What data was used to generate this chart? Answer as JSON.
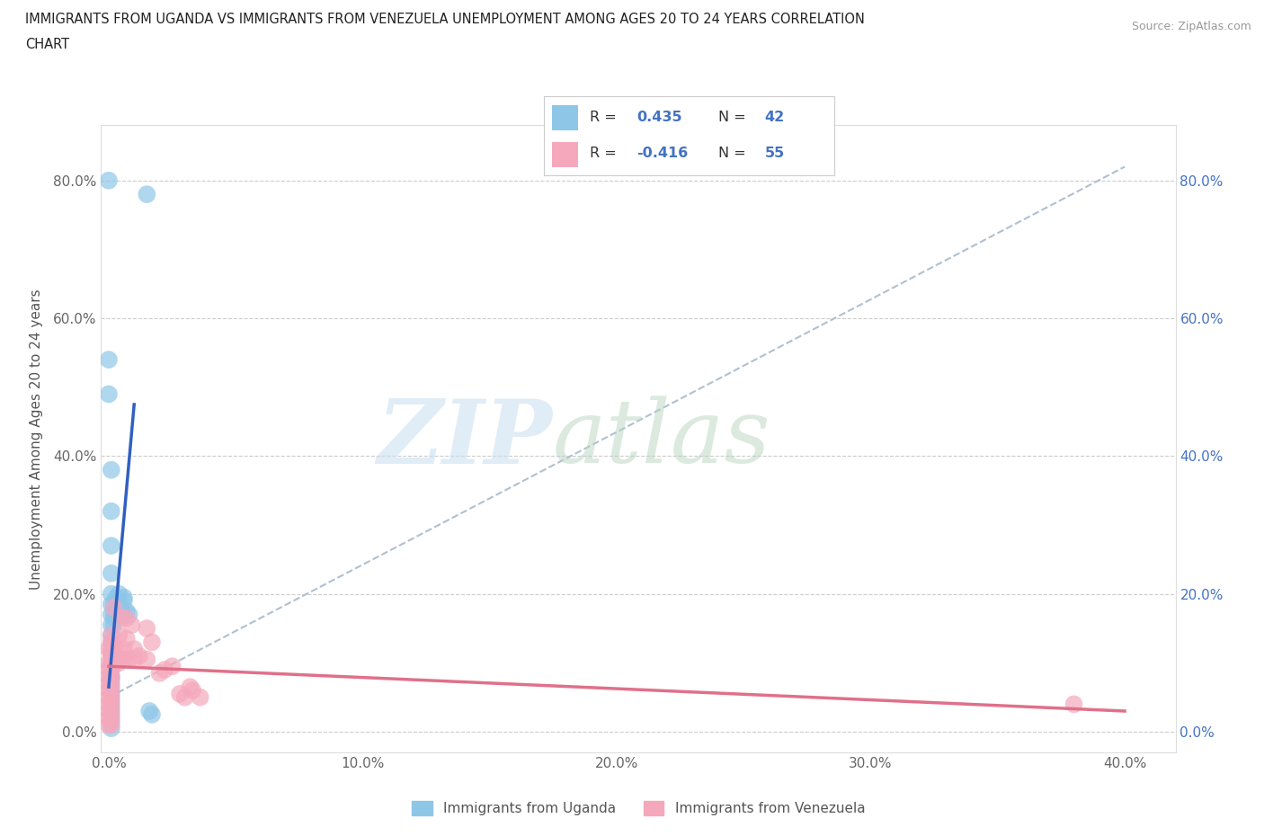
{
  "title_line1": "IMMIGRANTS FROM UGANDA VS IMMIGRANTS FROM VENEZUELA UNEMPLOYMENT AMONG AGES 20 TO 24 YEARS CORRELATION",
  "title_line2": "CHART",
  "source": "Source: ZipAtlas.com",
  "ylabel": "Unemployment Among Ages 20 to 24 years",
  "xlim": [
    -0.003,
    0.42
  ],
  "ylim": [
    -0.03,
    0.88
  ],
  "xticks": [
    0.0,
    0.1,
    0.2,
    0.3,
    0.4
  ],
  "yticks": [
    0.0,
    0.2,
    0.4,
    0.6,
    0.8
  ],
  "xtick_labels": [
    "0.0%",
    "10.0%",
    "20.0%",
    "30.0%",
    "40.0%"
  ],
  "ytick_labels": [
    "0.0%",
    "20.0%",
    "40.0%",
    "60.0%",
    "80.0%"
  ],
  "uganda_color": "#8ec6e8",
  "venezuela_color": "#f5a8bc",
  "uganda_line_color": "#3060c0",
  "venezuela_line_color": "#e0708a",
  "dash_line_color": "#b0c0d0",
  "legend_color": "#4472c4",
  "background_color": "#ffffff",
  "grid_color": "#cccccc",
  "uganda_R": 0.435,
  "uganda_N": 42,
  "venezuela_R": -0.416,
  "venezuela_N": 55,
  "uganda_scatter": [
    [
      0.0,
      0.8
    ],
    [
      0.0,
      0.54
    ],
    [
      0.0,
      0.49
    ],
    [
      0.001,
      0.38
    ],
    [
      0.001,
      0.32
    ],
    [
      0.001,
      0.27
    ],
    [
      0.001,
      0.23
    ],
    [
      0.001,
      0.2
    ],
    [
      0.001,
      0.185
    ],
    [
      0.001,
      0.17
    ],
    [
      0.001,
      0.155
    ],
    [
      0.001,
      0.14
    ],
    [
      0.001,
      0.13
    ],
    [
      0.001,
      0.115
    ],
    [
      0.001,
      0.1
    ],
    [
      0.001,
      0.09
    ],
    [
      0.001,
      0.08
    ],
    [
      0.001,
      0.075
    ],
    [
      0.001,
      0.065
    ],
    [
      0.001,
      0.055
    ],
    [
      0.001,
      0.045
    ],
    [
      0.001,
      0.035
    ],
    [
      0.001,
      0.025
    ],
    [
      0.001,
      0.015
    ],
    [
      0.001,
      0.005
    ],
    [
      0.002,
      0.185
    ],
    [
      0.002,
      0.175
    ],
    [
      0.002,
      0.165
    ],
    [
      0.002,
      0.155
    ],
    [
      0.003,
      0.195
    ],
    [
      0.003,
      0.185
    ],
    [
      0.004,
      0.2
    ],
    [
      0.004,
      0.19
    ],
    [
      0.005,
      0.175
    ],
    [
      0.005,
      0.17
    ],
    [
      0.006,
      0.195
    ],
    [
      0.006,
      0.19
    ],
    [
      0.007,
      0.175
    ],
    [
      0.008,
      0.17
    ],
    [
      0.015,
      0.78
    ],
    [
      0.016,
      0.03
    ],
    [
      0.017,
      0.025
    ]
  ],
  "venezuela_scatter": [
    [
      0.0,
      0.12
    ],
    [
      0.0,
      0.1
    ],
    [
      0.0,
      0.09
    ],
    [
      0.0,
      0.08
    ],
    [
      0.0,
      0.07
    ],
    [
      0.0,
      0.06
    ],
    [
      0.0,
      0.05
    ],
    [
      0.0,
      0.04
    ],
    [
      0.0,
      0.03
    ],
    [
      0.0,
      0.02
    ],
    [
      0.0,
      0.01
    ],
    [
      0.001,
      0.14
    ],
    [
      0.001,
      0.13
    ],
    [
      0.001,
      0.12
    ],
    [
      0.001,
      0.11
    ],
    [
      0.001,
      0.1
    ],
    [
      0.001,
      0.09
    ],
    [
      0.001,
      0.08
    ],
    [
      0.001,
      0.07
    ],
    [
      0.001,
      0.06
    ],
    [
      0.001,
      0.05
    ],
    [
      0.001,
      0.04
    ],
    [
      0.001,
      0.03
    ],
    [
      0.001,
      0.02
    ],
    [
      0.001,
      0.01
    ],
    [
      0.002,
      0.18
    ],
    [
      0.002,
      0.12
    ],
    [
      0.002,
      0.1
    ],
    [
      0.003,
      0.12
    ],
    [
      0.003,
      0.105
    ],
    [
      0.004,
      0.14
    ],
    [
      0.004,
      0.1
    ],
    [
      0.005,
      0.165
    ],
    [
      0.005,
      0.105
    ],
    [
      0.006,
      0.12
    ],
    [
      0.006,
      0.105
    ],
    [
      0.007,
      0.165
    ],
    [
      0.007,
      0.135
    ],
    [
      0.008,
      0.105
    ],
    [
      0.009,
      0.155
    ],
    [
      0.01,
      0.12
    ],
    [
      0.01,
      0.105
    ],
    [
      0.012,
      0.11
    ],
    [
      0.015,
      0.15
    ],
    [
      0.015,
      0.105
    ],
    [
      0.017,
      0.13
    ],
    [
      0.02,
      0.085
    ],
    [
      0.022,
      0.09
    ],
    [
      0.025,
      0.095
    ],
    [
      0.028,
      0.055
    ],
    [
      0.03,
      0.05
    ],
    [
      0.032,
      0.065
    ],
    [
      0.033,
      0.06
    ],
    [
      0.036,
      0.05
    ],
    [
      0.38,
      0.04
    ]
  ]
}
